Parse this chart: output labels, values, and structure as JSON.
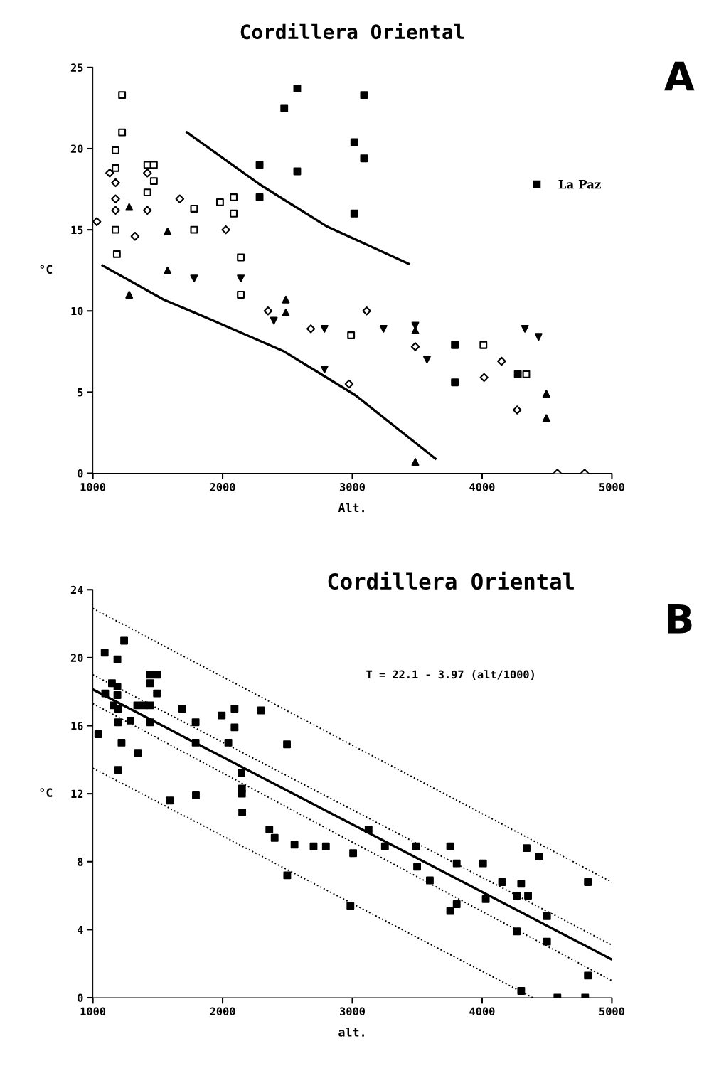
{
  "chart_data": [
    {
      "type": "scatter",
      "title": "Cordillera Oriental",
      "xlabel": "Alt.",
      "ylabel": "°C",
      "annotations": [
        "A"
      ],
      "xlim": [
        1000,
        5000
      ],
      "xticks": [
        1000,
        2000,
        3000,
        4000,
        5000
      ],
      "ylim": [
        0,
        25
      ],
      "yticks": [
        0,
        5,
        10,
        15,
        20,
        25
      ],
      "grid": false,
      "legend": "upper right",
      "series": [
        {
          "color": "#000000",
          "marker": "square",
          "x": [
            1225,
            1225,
            1175,
            1175,
            1175,
            1185,
            1420,
            1470,
            1470,
            1420,
            1780,
            1780,
            1980,
            2085,
            2085,
            2140,
            2140,
            2990,
            4010,
            4340
          ],
          "values": [
            23.3,
            21.0,
            19.9,
            18.8,
            15.0,
            13.5,
            19.0,
            19.0,
            18.0,
            17.3,
            16.3,
            15.0,
            16.7,
            17.0,
            16.0,
            13.3,
            11.0,
            8.5,
            7.9,
            6.1
          ]
        },
        {
          "color": "#000000",
          "marker": "diamond",
          "x": [
            1030,
            1130,
            1175,
            1175,
            1175,
            1325,
            1420,
            1420,
            1670,
            2025,
            2350,
            2680,
            2975,
            3110,
            3485,
            4015,
            4150,
            4270,
            4580,
            4790
          ],
          "values": [
            15.5,
            18.5,
            17.9,
            16.9,
            16.2,
            14.6,
            16.2,
            18.5,
            16.9,
            15.0,
            10.0,
            8.9,
            5.5,
            10.0,
            7.8,
            5.9,
            6.9,
            3.9,
            0,
            0
          ]
        },
        {
          "color": "#000000",
          "marker": "triangle",
          "x": [
            1280,
            1280,
            1576,
            1576,
            2487,
            2487,
            3485,
            3485,
            4495,
            4495
          ],
          "values": [
            16.4,
            11.0,
            14.9,
            12.5,
            10.7,
            9.9,
            0.7,
            8.8,
            4.9,
            3.4
          ]
        },
        {
          "color": "#000000",
          "marker": "triangle_down",
          "x": [
            1780,
            2140,
            2395,
            2785,
            2785,
            3240,
            3575,
            4330,
            4435,
            3485
          ],
          "values": [
            12.0,
            12.0,
            9.4,
            8.9,
            6.4,
            8.9,
            7.0,
            8.9,
            8.4,
            9.1
          ]
        },
        {
          "name": "La Paz",
          "color": "#000000",
          "marker": "square",
          "x": [
            2475,
            2575,
            3090,
            2285,
            2575,
            2285,
            3015,
            3090,
            3015,
            3790,
            3790,
            4275
          ],
          "values": [
            22.5,
            23.7,
            23.3,
            19.0,
            18.6,
            17.0,
            20.4,
            19.4,
            16.0,
            7.9,
            5.6,
            6.1
          ]
        },
        {
          "type": "line",
          "color": "#000000",
          "marker": "none",
          "line_style": "solid",
          "x": [
            1725,
            2285,
            2805,
            3435
          ],
          "values": [
            21.0,
            17.8,
            15.2,
            12.9
          ]
        },
        {
          "type": "line",
          "color": "#000000",
          "marker": "none",
          "line_style": "solid",
          "x": [
            1075,
            1545,
            1930,
            2475,
            3025,
            3640
          ],
          "values": [
            12.8,
            10.7,
            9.4,
            7.5,
            4.8,
            0.9
          ]
        }
      ]
    },
    {
      "type": "scatter",
      "title": "Cordillera Oriental",
      "xlabel": "alt.",
      "ylabel": "°C",
      "annotations": [
        "B",
        "T = 22.1 - 3.97 (alt/1000)"
      ],
      "xlim": [
        1000,
        5000
      ],
      "xticks": [
        1000,
        2000,
        3000,
        4000,
        5000
      ],
      "ylim": [
        0,
        24
      ],
      "yticks": [
        0,
        4,
        8,
        12,
        16,
        20,
        24
      ],
      "grid": false,
      "series": [
        {
          "color": "#000000",
          "marker": "square",
          "x": [
            1042,
            1091,
            1095,
            1147,
            1189,
            1189,
            1189,
            1158,
            1195,
            1195,
            1221,
            1195,
            1241,
            1290,
            1347,
            1342,
            1395,
            1441,
            1441,
            1441,
            1494,
            1494,
            1441,
            1593,
            1689,
            1792,
            1792,
            1794,
            1993,
            2044,
            2092,
            2092,
            2145,
            2149,
            2149,
            2151,
            2297,
            2360,
            2401,
            2496,
            2498,
            2554,
            2701,
            2796,
            3006,
            2985,
            3125,
            3251,
            3493,
            3499,
            3597,
            3754,
            3804,
            3754,
            3804,
            4007,
            4028,
            4154,
            4301,
            4267,
            4354,
            4343,
            4437,
            4500,
            4500,
            4267,
            4301,
            4580,
            4794,
            4815,
            4815
          ],
          "values": [
            15.5,
            20.3,
            17.9,
            18.5,
            19.9,
            18.3,
            17.8,
            17.2,
            17.0,
            16.2,
            15.0,
            13.4,
            21.0,
            16.3,
            14.4,
            17.2,
            17.2,
            17.2,
            18.5,
            19.0,
            19.0,
            17.9,
            16.2,
            11.6,
            17.0,
            16.2,
            15.0,
            11.9,
            16.6,
            15.0,
            17.0,
            15.9,
            13.2,
            12.3,
            12.0,
            10.9,
            16.9,
            9.9,
            9.4,
            14.9,
            7.2,
            9.0,
            8.9,
            8.9,
            8.5,
            5.4,
            9.9,
            8.9,
            8.9,
            7.7,
            6.9,
            8.9,
            7.9,
            5.1,
            5.5,
            7.9,
            5.8,
            6.8,
            6.7,
            6.0,
            6.0,
            8.8,
            8.3,
            4.8,
            3.3,
            3.9,
            0.4,
            0,
            0,
            6.8,
            1.3
          ]
        },
        {
          "type": "line",
          "color": "#000000",
          "marker": "none",
          "line_style": "solid",
          "x": [
            1000,
            5000
          ],
          "values": [
            18.13,
            2.25
          ]
        },
        {
          "type": "line",
          "color": "#000000",
          "marker": "none",
          "line_style": "dotted",
          "x": [
            1000,
            5000
          ],
          "values": [
            22.9,
            6.8
          ]
        },
        {
          "type": "line",
          "color": "#000000",
          "marker": "none",
          "line_style": "dotted",
          "x": [
            1000,
            5000
          ],
          "values": [
            19.0,
            3.1
          ]
        },
        {
          "type": "line",
          "color": "#000000",
          "marker": "none",
          "line_style": "dotted",
          "x": [
            1000,
            5000
          ],
          "values": [
            17.3,
            1.0
          ]
        },
        {
          "type": "line",
          "color": "#000000",
          "marker": "none",
          "line_style": "dotted",
          "x": [
            1000,
            4390
          ],
          "values": [
            13.5,
            0
          ]
        }
      ]
    }
  ]
}
